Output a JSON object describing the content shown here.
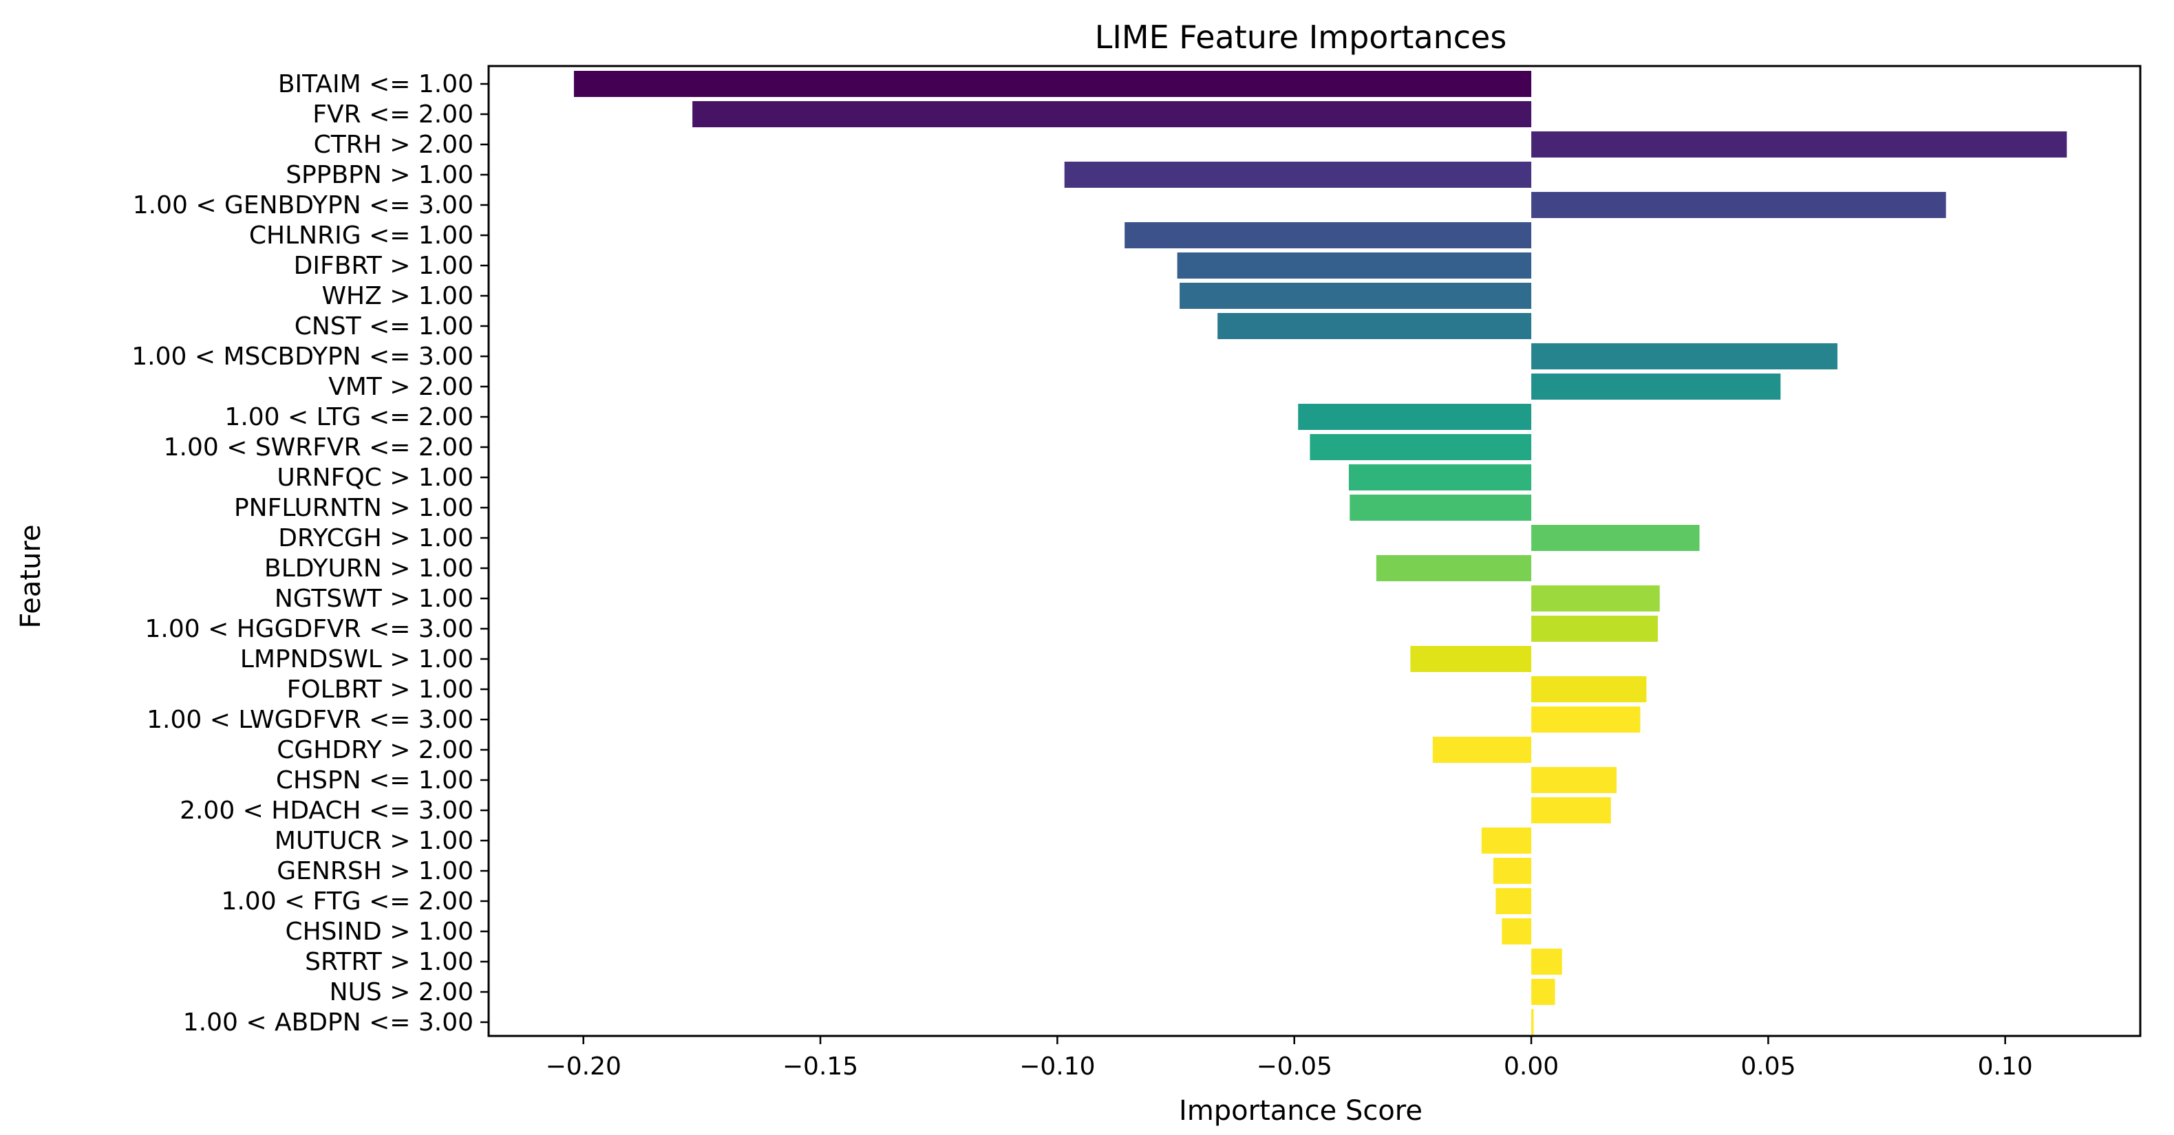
{
  "chart_data": {
    "type": "bar",
    "orientation": "horizontal",
    "title": "LIME Feature Importances",
    "xlabel": "Importance Score",
    "ylabel": "Feature",
    "xlim": [
      -0.22,
      0.1285
    ],
    "xticks": [
      -0.2,
      -0.15,
      -0.1,
      -0.05,
      0.0,
      0.05,
      0.1
    ],
    "xtick_labels": [
      "−0.20",
      "−0.15",
      "−0.10",
      "−0.05",
      "0.00",
      "0.05",
      "0.10"
    ],
    "grid": false,
    "colormap": "viridis",
    "categories": [
      "BITAIM <= 1.00",
      "FVR <= 2.00",
      "CTRH > 2.00",
      "SPPBPN > 1.00",
      "1.00 < GENBDYPN <= 3.00",
      "CHLNRIG <= 1.00",
      "DIFBRT > 1.00",
      "WHZ > 1.00",
      "CNST <= 1.00",
      "1.00 < MSCBDYPN <= 3.00",
      "VMT > 2.00",
      "1.00 < LTG <= 2.00",
      "1.00 < SWRFVR <= 2.00",
      "URNFQC > 1.00",
      "PNFLURNTN > 1.00",
      "DRYCGH > 1.00",
      "BLDYURN > 1.00",
      "NGTSWT > 1.00",
      "1.00 < HGGDFVR <= 3.00",
      "LMPNDSWL > 1.00",
      "FOLBRT > 1.00",
      "1.00 < LWGDFVR <= 3.00",
      "CGHDRY > 2.00",
      "CHSPN <= 1.00",
      "2.00 < HDACH <= 3.00",
      "MUTUCR > 1.00",
      "GENRSH > 1.00",
      "1.00 < FTG <= 2.00",
      "CHSIND > 1.00",
      "SRTRT > 1.00",
      "NUS > 2.00",
      "1.00 < ABDPN <= 3.00"
    ],
    "values": [
      -0.202,
      -0.177,
      0.113,
      -0.0985,
      0.0875,
      -0.0858,
      -0.0747,
      -0.0742,
      -0.0662,
      0.0646,
      0.0526,
      -0.0492,
      -0.0467,
      -0.0385,
      -0.0383,
      0.0355,
      -0.0327,
      0.0271,
      0.0267,
      -0.0255,
      0.0243,
      0.023,
      -0.0208,
      0.018,
      0.0168,
      -0.0105,
      -0.008,
      -0.0075,
      -0.0062,
      0.0065,
      0.005,
      0.0005
    ],
    "colors": [
      "#440154",
      "#471365",
      "#482475",
      "#463480",
      "#414487",
      "#3b528b",
      "#355f8d",
      "#2f6c8e",
      "#2a788e",
      "#25848e",
      "#21918c",
      "#1e9c89",
      "#22a884",
      "#2fb47c",
      "#44bf70",
      "#5ec962",
      "#7ad151",
      "#9bd93c",
      "#bddf26",
      "#dfe318",
      "#f0e51c",
      "#fde725",
      "#fde725",
      "#fde725",
      "#fde725",
      "#fde725",
      "#fde725",
      "#fde725",
      "#fde725",
      "#fde725",
      "#fde725",
      "#fde725"
    ]
  }
}
